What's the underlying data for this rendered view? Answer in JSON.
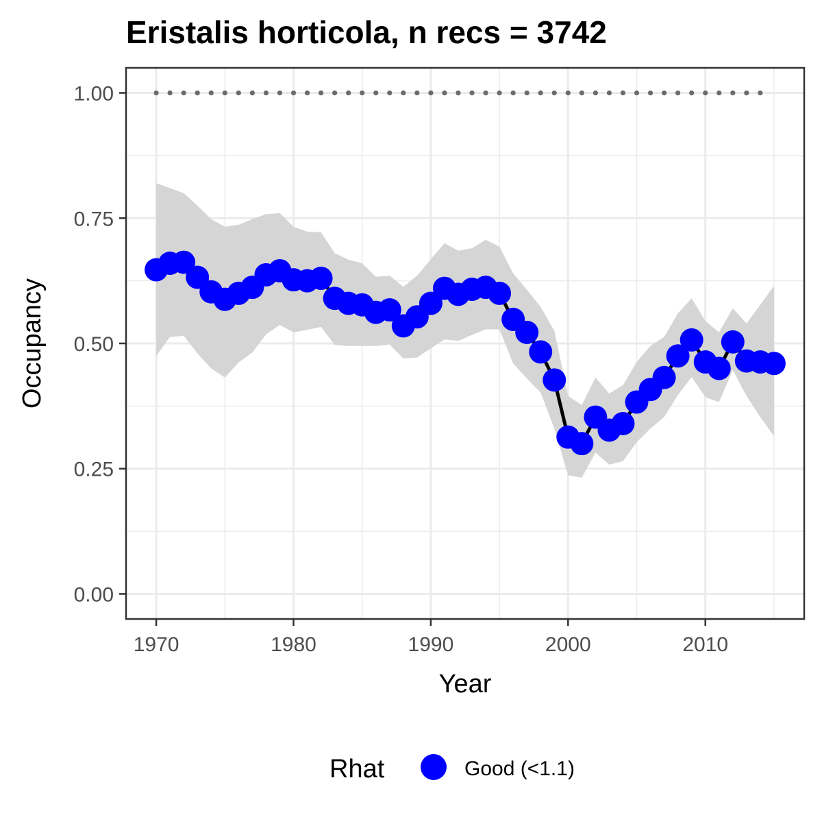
{
  "chart_data": {
    "type": "line",
    "title": "Eristalis horticola, n recs = 3742",
    "xlabel": "Year",
    "ylabel": "Occupancy",
    "xlim": [
      1967.8,
      2017.2
    ],
    "ylim": [
      -0.05,
      1.05
    ],
    "x_ticks": [
      1970,
      1980,
      1990,
      2000,
      2010
    ],
    "x_tick_labels": [
      "1970",
      "1980",
      "1990",
      "2000",
      "2010"
    ],
    "y_ticks": [
      0,
      0.25,
      0.5,
      0.75,
      1
    ],
    "y_tick_labels": [
      "0.00",
      "0.25",
      "0.50",
      "0.75",
      "1.00"
    ],
    "grid": true,
    "legend": {
      "position": "bottom",
      "title": "Rhat",
      "items": [
        {
          "label": "Good (<1.1)",
          "color": "#0000ff"
        }
      ]
    },
    "colors": {
      "points": "#0000ff",
      "line": "#000000",
      "ribbon": "#d5d5d5",
      "reference": "#6b6b6b",
      "grid": "#ebebeb",
      "panel_border": "#333333"
    },
    "series": [
      {
        "name": "Good (<1.1)",
        "x": [
          1970,
          1971,
          1972,
          1973,
          1974,
          1975,
          1976,
          1977,
          1978,
          1979,
          1980,
          1981,
          1982,
          1983,
          1984,
          1985,
          1986,
          1987,
          1988,
          1989,
          1990,
          1991,
          1992,
          1993,
          1994,
          1995,
          1996,
          1997,
          1998,
          1999,
          2000,
          2001,
          2002,
          2003,
          2004,
          2005,
          2006,
          2007,
          2008,
          2009,
          2010,
          2011,
          2012,
          2013,
          2014,
          2015
        ],
        "y": [
          0.647,
          0.66,
          0.662,
          0.632,
          0.603,
          0.588,
          0.6,
          0.612,
          0.637,
          0.645,
          0.627,
          0.625,
          0.63,
          0.59,
          0.58,
          0.577,
          0.562,
          0.567,
          0.535,
          0.553,
          0.58,
          0.61,
          0.598,
          0.608,
          0.612,
          0.6,
          0.548,
          0.522,
          0.483,
          0.427,
          0.313,
          0.3,
          0.353,
          0.327,
          0.34,
          0.383,
          0.408,
          0.432,
          0.475,
          0.507,
          0.463,
          0.45,
          0.503,
          0.465,
          0.463,
          0.46
        ],
        "lower": [
          0.475,
          0.513,
          0.515,
          0.48,
          0.45,
          0.432,
          0.462,
          0.482,
          0.518,
          0.537,
          0.522,
          0.527,
          0.533,
          0.497,
          0.495,
          0.495,
          0.495,
          0.498,
          0.47,
          0.472,
          0.49,
          0.508,
          0.505,
          0.517,
          0.528,
          0.528,
          0.46,
          0.43,
          0.402,
          0.33,
          0.237,
          0.232,
          0.282,
          0.258,
          0.265,
          0.303,
          0.33,
          0.353,
          0.397,
          0.433,
          0.393,
          0.383,
          0.447,
          0.395,
          0.353,
          0.315
        ],
        "upper": [
          0.82,
          0.81,
          0.8,
          0.775,
          0.748,
          0.733,
          0.737,
          0.748,
          0.758,
          0.76,
          0.733,
          0.723,
          0.722,
          0.68,
          0.667,
          0.66,
          0.633,
          0.635,
          0.613,
          0.635,
          0.668,
          0.7,
          0.685,
          0.69,
          0.707,
          0.693,
          0.64,
          0.607,
          0.573,
          0.525,
          0.395,
          0.377,
          0.432,
          0.4,
          0.417,
          0.463,
          0.495,
          0.513,
          0.56,
          0.59,
          0.545,
          0.522,
          0.57,
          0.54,
          0.577,
          0.615
        ]
      }
    ],
    "reference_line": {
      "y": 1,
      "x": [
        1970,
        1971,
        1972,
        1973,
        1974,
        1975,
        1976,
        1977,
        1978,
        1979,
        1980,
        1981,
        1982,
        1983,
        1984,
        1985,
        1986,
        1987,
        1988,
        1989,
        1990,
        1991,
        1992,
        1993,
        1994,
        1995,
        1996,
        1997,
        1998,
        1999,
        2000,
        2001,
        2002,
        2003,
        2004,
        2005,
        2006,
        2007,
        2008,
        2009,
        2010,
        2011,
        2012,
        2013,
        2014
      ]
    }
  }
}
